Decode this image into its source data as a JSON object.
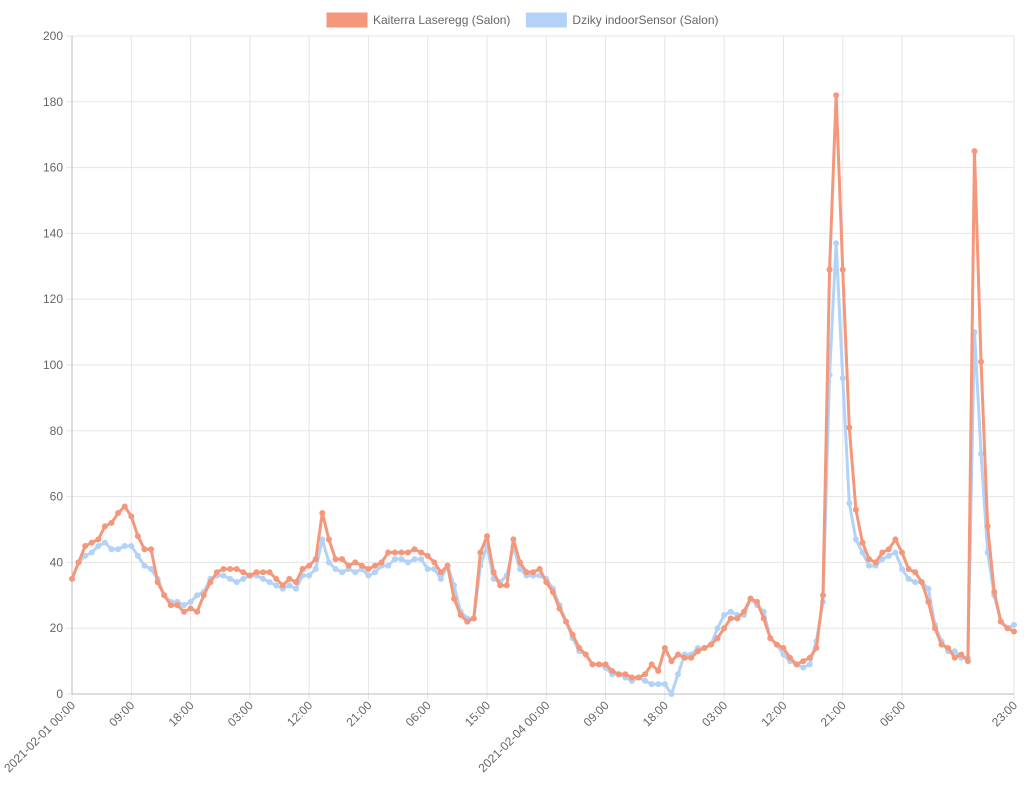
{
  "chart_data": {
    "type": "line",
    "x": [
      0,
      1,
      2,
      3,
      4,
      5,
      6,
      7,
      8,
      9,
      10,
      11,
      12,
      13,
      14,
      15,
      16,
      17,
      18,
      19,
      20,
      21,
      22,
      23,
      24,
      25,
      26,
      27,
      28,
      29,
      30,
      31,
      32,
      33,
      34,
      35,
      36,
      37,
      38,
      39,
      40,
      41,
      42,
      43,
      44,
      45,
      46,
      47,
      48,
      49,
      50,
      51,
      52,
      53,
      54,
      55,
      56,
      57,
      58,
      59,
      60,
      61,
      62,
      63,
      64,
      65,
      66,
      67,
      68,
      69,
      70,
      71,
      72,
      73,
      74,
      75,
      76,
      77,
      78,
      79,
      80,
      81,
      82,
      83,
      84,
      85,
      86,
      87,
      88,
      89,
      90,
      91,
      92,
      93,
      94,
      95,
      96,
      97,
      98,
      99,
      100,
      101,
      102,
      103,
      104,
      105,
      106,
      107,
      108,
      109,
      110,
      111,
      112,
      113,
      114,
      115,
      116,
      117,
      118,
      119,
      120,
      121,
      122,
      123,
      124,
      125,
      126,
      127,
      128,
      129,
      130,
      131,
      132,
      133,
      134,
      135,
      136,
      137,
      138,
      139,
      140,
      141,
      142,
      143
    ],
    "series": [
      {
        "name": "Dziky indoorSensor (Salon)",
        "color": "#b3d2f7",
        "values": [
          35,
          40,
          42,
          43,
          45,
          46,
          44,
          44,
          45,
          45,
          42,
          39,
          38,
          35,
          30,
          28,
          28,
          27,
          28,
          30,
          31,
          35,
          36,
          36,
          35,
          34,
          35,
          36,
          36,
          35,
          34,
          33,
          32,
          33,
          32,
          36,
          36,
          38,
          47,
          40,
          38,
          37,
          38,
          37,
          38,
          36,
          37,
          39,
          39,
          41,
          41,
          40,
          41,
          41,
          38,
          38,
          35,
          39,
          33,
          25,
          23,
          23,
          39,
          45,
          35,
          34,
          36,
          45,
          38,
          36,
          36,
          36,
          35,
          32,
          27,
          22,
          17,
          13,
          12,
          9,
          9,
          8,
          6,
          6,
          5,
          4,
          5,
          4,
          3,
          3,
          3,
          0,
          6,
          12,
          12,
          14,
          14,
          15,
          20,
          24,
          25,
          24,
          24,
          29,
          27,
          25,
          17,
          15,
          12,
          10,
          9,
          8,
          9,
          16,
          28,
          97,
          137,
          96,
          58,
          47,
          43,
          39,
          39,
          41,
          42,
          43,
          38,
          35,
          34,
          34,
          32,
          21,
          16,
          13,
          13,
          11,
          11,
          110,
          73,
          43,
          30,
          22,
          20,
          21
        ]
      },
      {
        "name": "Kaiterra Laseregg (Salon)",
        "color": "#f4977a",
        "values": [
          35,
          40,
          45,
          46,
          47,
          51,
          52,
          55,
          57,
          54,
          48,
          44,
          44,
          34,
          30,
          27,
          27,
          25,
          26,
          25,
          30,
          34,
          37,
          38,
          38,
          38,
          37,
          36,
          37,
          37,
          37,
          35,
          33,
          35,
          34,
          38,
          39,
          41,
          55,
          47,
          41,
          41,
          39,
          40,
          39,
          38,
          39,
          40,
          43,
          43,
          43,
          43,
          44,
          43,
          42,
          40,
          37,
          39,
          29,
          24,
          22,
          23,
          43,
          48,
          37,
          33,
          33,
          47,
          40,
          37,
          37,
          38,
          34,
          31,
          26,
          22,
          18,
          14,
          12,
          9,
          9,
          9,
          7,
          6,
          6,
          5,
          5,
          6,
          9,
          7,
          14,
          10,
          12,
          11,
          11,
          13,
          14,
          15,
          17,
          20,
          23,
          23,
          25,
          29,
          28,
          23,
          17,
          15,
          14,
          11,
          9,
          10,
          11,
          14,
          30,
          129,
          182,
          129,
          81,
          56,
          46,
          41,
          40,
          43,
          44,
          47,
          43,
          38,
          37,
          34,
          28,
          20,
          15,
          14,
          11,
          12,
          10,
          165,
          101,
          51,
          31,
          22,
          20,
          19
        ]
      }
    ],
    "legend_order": [
      1,
      0
    ],
    "xlim": [
      0,
      143
    ],
    "xticks": [
      {
        "value": 0,
        "label": "2021-02-01 00:00"
      },
      {
        "value": 9,
        "label": "09:00"
      },
      {
        "value": 18,
        "label": "18:00"
      },
      {
        "value": 27,
        "label": "03:00"
      },
      {
        "value": 36,
        "label": "12:00"
      },
      {
        "value": 45,
        "label": "21:00"
      },
      {
        "value": 54,
        "label": "06:00"
      },
      {
        "value": 63,
        "label": "15:00"
      },
      {
        "value": 72,
        "label": "2021-02-04 00:00"
      },
      {
        "value": 81,
        "label": "09:00"
      },
      {
        "value": 90,
        "label": "18:00"
      },
      {
        "value": 99,
        "label": "03:00"
      },
      {
        "value": 108,
        "label": "12:00"
      },
      {
        "value": 117,
        "label": "21:00"
      },
      {
        "value": 126,
        "label": "06:00"
      },
      {
        "value": 143,
        "label": "23:00"
      }
    ],
    "ylim": [
      0,
      200
    ],
    "yticks": [
      0,
      20,
      40,
      60,
      80,
      100,
      120,
      140,
      160,
      180,
      200
    ],
    "grid": true,
    "legend": "top"
  }
}
